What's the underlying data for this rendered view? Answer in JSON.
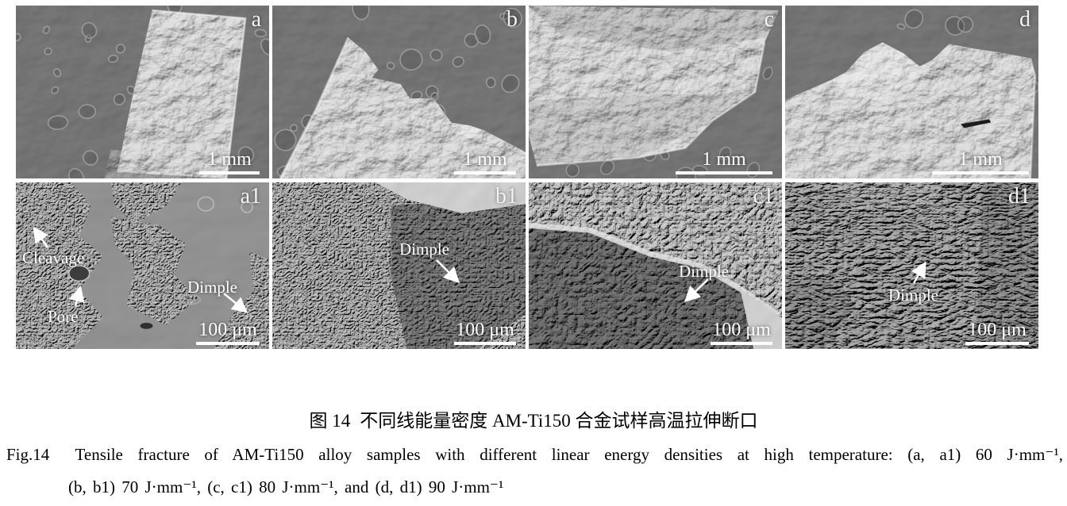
{
  "figure": {
    "panels": [
      {
        "id": "a",
        "label": "a",
        "scale": "1 mm"
      },
      {
        "id": "b",
        "label": "b",
        "scale": "1 mm"
      },
      {
        "id": "c",
        "label": "c",
        "scale": "1 mm"
      },
      {
        "id": "d",
        "label": "d",
        "scale": "1 mm"
      },
      {
        "id": "a1",
        "label": "a1",
        "scale": "100 μm",
        "annotations": [
          "Cleavage",
          "Pore",
          "Dimple"
        ]
      },
      {
        "id": "b1",
        "label": "b1",
        "scale": "100 μm",
        "annotations": [
          "Dimple"
        ]
      },
      {
        "id": "c1",
        "label": "c1",
        "scale": "100 μm",
        "annotations": [
          "Dimple"
        ]
      },
      {
        "id": "d1",
        "label": "d1",
        "scale": "100 μm",
        "annotations": [
          "Dimple"
        ]
      }
    ],
    "caption_zh": {
      "fig_no": "图 14",
      "text": "不同线能量密度 AM-Ti150 合金试样高温拉伸断口"
    },
    "caption_en": {
      "fig_no": "Fig.14",
      "line1": "Tensile fracture of AM-Ti150 alloy samples with different linear energy densities at high temperature: (a, a1) 60 J·mm⁻¹,",
      "line2": "(b, b1) 70 J·mm⁻¹, (c, c1) 80 J·mm⁻¹, and (d, d1) 90 J·mm⁻¹"
    },
    "colors": {
      "sem_background": "#565656",
      "sem_bright": "#c4c4c4",
      "annotation": "#ffffff",
      "caption_text": "#000000"
    }
  }
}
